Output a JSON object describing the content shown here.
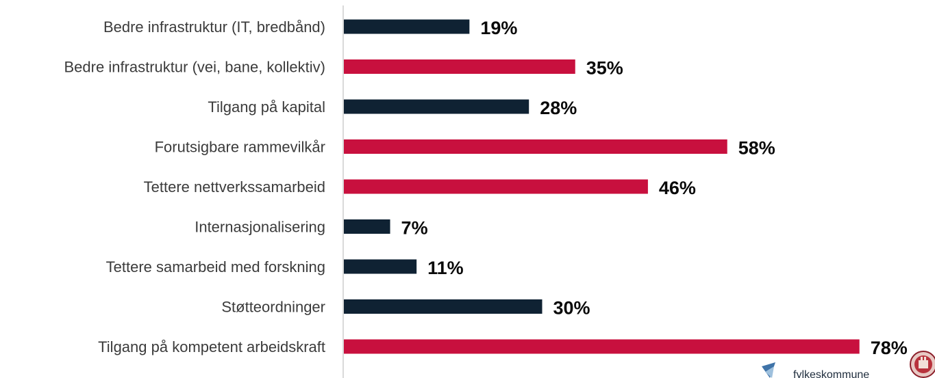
{
  "chart_data": {
    "type": "bar",
    "orientation": "horizontal",
    "title": "",
    "xlabel": "",
    "ylabel": "",
    "xlim": [
      0,
      100
    ],
    "grid": false,
    "legend": "none",
    "categories": [
      "Bedre infrastruktur (IT, bredbånd)",
      "Bedre infrastruktur (vei, bane, kollektiv)",
      "Tilgang på kapital",
      "Forutsigbare rammevilkår",
      "Tettere nettverkssamarbeid",
      "Internasjonalisering",
      "Tettere samarbeid med forskning",
      "Støtteordninger",
      "Tilgang på kompetent arbeidskraft"
    ],
    "values": [
      19,
      35,
      28,
      58,
      46,
      7,
      11,
      30,
      78
    ],
    "value_labels": [
      "19%",
      "35%",
      "28%",
      "58%",
      "46%",
      "7%",
      "11%",
      "30%",
      "78%"
    ],
    "bar_colors": [
      "#0f2233",
      "#c8103e",
      "#0f2233",
      "#c8103e",
      "#c8103e",
      "#0f2233",
      "#0f2233",
      "#0f2233",
      "#c8103e"
    ]
  },
  "colors": {
    "dark": "#0f2233",
    "red": "#c8103e",
    "axis": "#d9d9d9"
  },
  "logo": {
    "text": "fylkeskommune",
    "icon": "county-crest-icon"
  }
}
